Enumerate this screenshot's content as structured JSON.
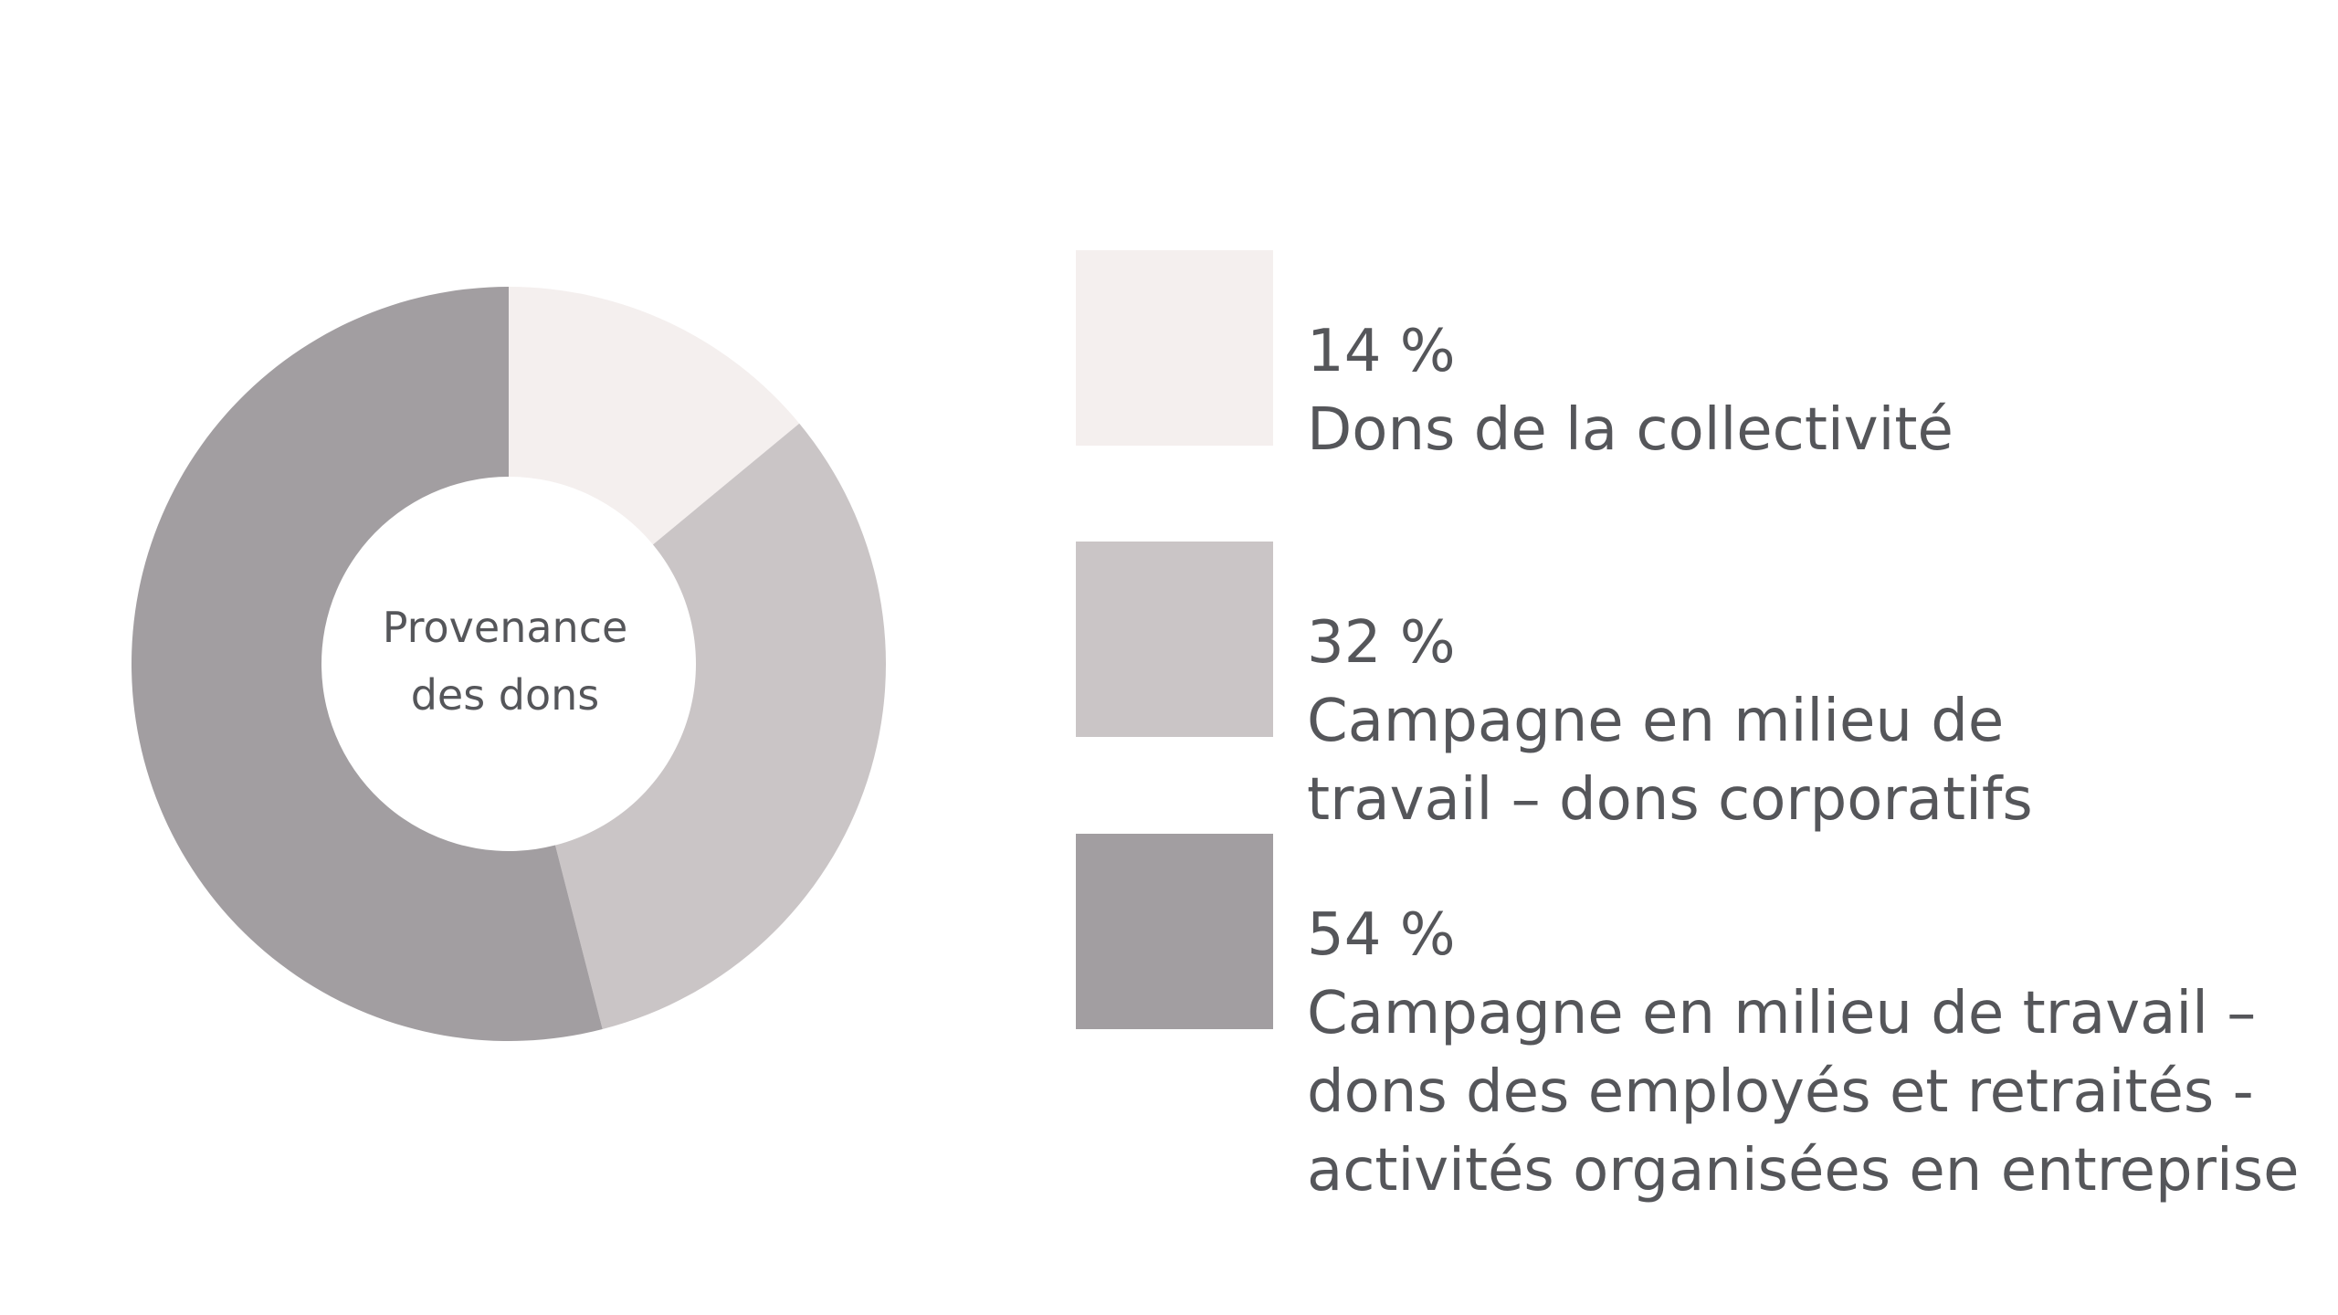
{
  "chart_data": {
    "type": "pie",
    "title": "",
    "center_label": [
      "Provenance",
      "des dons"
    ],
    "slices": [
      {
        "value": 14,
        "percent_label": "14 %",
        "label_lines": [
          "Dons de la collectivité"
        ],
        "color": "#f4efee"
      },
      {
        "value": 32,
        "percent_label": "32 %",
        "label_lines": [
          "Campagne en milieu de",
          "travail – dons corporatifs"
        ],
        "color": "#cac5c6"
      },
      {
        "value": 54,
        "percent_label": "54 %",
        "label_lines": [
          "Campagne en milieu de travail –",
          "dons des employés et retraités -",
          "activités organisées en entreprise"
        ],
        "color": "#a29ea1"
      }
    ],
    "legend_position": "right",
    "start_angle": "top, clockwise"
  }
}
